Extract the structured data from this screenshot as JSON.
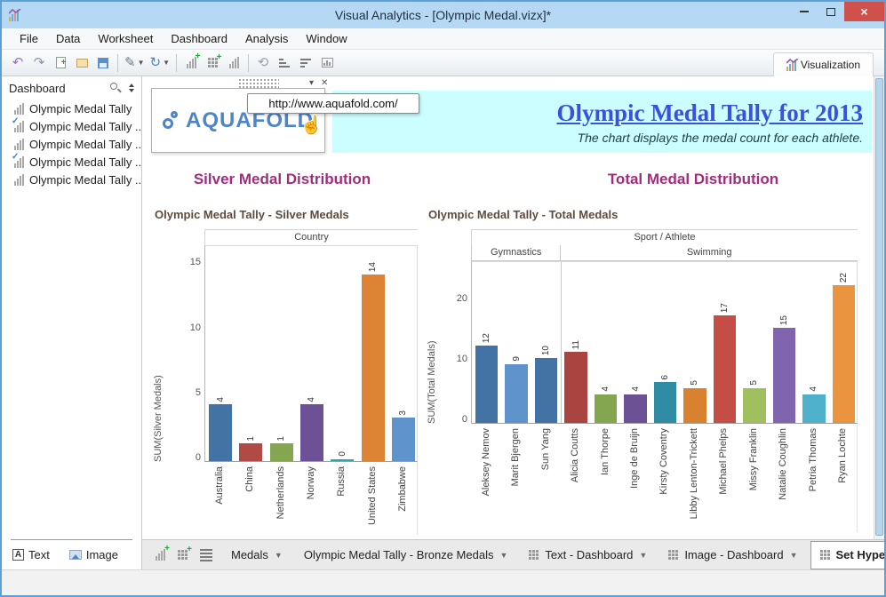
{
  "window": {
    "title": "Visual Analytics - [Olympic Medal.vizx]*",
    "controls": [
      "minimize",
      "maximize",
      "close"
    ]
  },
  "menu": {
    "items": [
      "File",
      "Data",
      "Worksheet",
      "Dashboard",
      "Analysis",
      "Window"
    ]
  },
  "toolbar": {
    "visualization_label": "Visualization",
    "icons": [
      {
        "name": "undo-icon",
        "kind": "glyph",
        "glyph": "↶",
        "color": "#9e72b8"
      },
      {
        "name": "redo-icon",
        "kind": "glyph",
        "glyph": "↷",
        "color": "#8a98a6"
      },
      {
        "name": "new-worksheet-icon",
        "kind": "doc"
      },
      {
        "name": "open-file-icon",
        "kind": "folder"
      },
      {
        "name": "save-icon",
        "kind": "floppy"
      },
      {
        "name": "separator",
        "kind": "sep"
      },
      {
        "name": "format-icon",
        "kind": "glyph",
        "glyph": "✎",
        "color": "#6a7a88",
        "dropdown": true
      },
      {
        "name": "refresh-icon",
        "kind": "glyph",
        "glyph": "↻",
        "color": "#4a86c8",
        "dropdown": true
      },
      {
        "name": "separator",
        "kind": "sep"
      },
      {
        "name": "add-worksheet-icon",
        "kind": "bars",
        "plus": true,
        "gray": true
      },
      {
        "name": "add-dashboard-icon",
        "kind": "grid",
        "plus": true
      },
      {
        "name": "duplicate-sheet-icon",
        "kind": "bars",
        "gray": true
      },
      {
        "name": "separator",
        "kind": "sep"
      },
      {
        "name": "lasso-select-icon",
        "kind": "glyph",
        "glyph": "⟲",
        "color": "#98a2aa"
      },
      {
        "name": "sort-ascending-icon",
        "kind": "hlines",
        "widths": [
          5,
          8,
          12
        ]
      },
      {
        "name": "sort-descending-icon",
        "kind": "hlines",
        "widths": [
          12,
          8,
          5
        ]
      },
      {
        "name": "chart-type-icon",
        "kind": "chartbox"
      }
    ]
  },
  "sidebar": {
    "header": "Dashboard",
    "items": [
      {
        "label": "Olympic Medal Tally",
        "checked": false
      },
      {
        "label": "Olympic Medal Tally ...",
        "checked": true
      },
      {
        "label": "Olympic Medal Tally ...",
        "checked": false
      },
      {
        "label": "Olympic Medal Tally ...",
        "checked": true
      },
      {
        "label": "Olympic Medal Tally ...",
        "checked": false
      }
    ],
    "text_button": "Text",
    "image_button": "Image"
  },
  "banner": {
    "logo_text": "AQUAFOLD",
    "tooltip": "http://www.aquafold.com/",
    "title": "Olympic Medal Tally for 2013",
    "subtitle": "The chart displays the medal count for each athlete.",
    "background": "#ccfeff",
    "title_color": "#3b50e0"
  },
  "sections": {
    "silver": "Silver Medal Distribution",
    "total": "Total Medal Distribution",
    "header_color": "#a12d7d"
  },
  "chart_data": [
    {
      "type": "bar",
      "title": "Olympic Medal Tally - Silver Medals",
      "field_label": "Country",
      "ylabel": "SUM(Silver Medals)",
      "categories": [
        "Australia",
        "China",
        "Netherlands",
        "Norway",
        "Russia",
        "United States",
        "Zimbabwe"
      ],
      "values": [
        4,
        1,
        1,
        4,
        0,
        14,
        3
      ],
      "colors": [
        "#4273a4",
        "#b04a45",
        "#84a650",
        "#6d5196",
        "#31a2b0",
        "#dd8434",
        "#5e93cc"
      ],
      "yticks": [
        0,
        5,
        10,
        15
      ],
      "ylim": [
        0,
        15.5
      ],
      "grid": false,
      "legend": false
    },
    {
      "type": "bar",
      "title": "Olympic Medal Tally - Total Medals",
      "field_label": "Sport / Athlete",
      "groups": [
        {
          "label": "Gymnastics",
          "span": 3
        },
        {
          "label": "Swimming",
          "span": 10
        }
      ],
      "ylabel": "SUM(Total Medals)",
      "categories": [
        "Aleksey Nemov",
        "Marit Bjergen",
        "Sun Yang",
        "Alicia Coutts",
        "Ian Thorpe",
        "Inge de Bruijn",
        "Kirsty Coventry",
        "Libby Lenton-Trickett",
        "Michael Phelps",
        "Missy Franklin",
        "Natalie Coughlin",
        "Petria Thomas",
        "Ryan Lochte"
      ],
      "values": [
        12,
        9,
        10,
        11,
        4,
        4,
        6,
        5,
        17,
        5,
        15,
        4,
        22
      ],
      "colors": [
        "#4273a4",
        "#5e93cc",
        "#4273a4",
        "#a94440",
        "#84a650",
        "#6d5196",
        "#2f8ba4",
        "#d8822f",
        "#c44d45",
        "#a0c060",
        "#8064ad",
        "#4fb0cc",
        "#eb9440"
      ],
      "yticks": [
        0,
        10,
        20
      ],
      "ylim": [
        0,
        25
      ],
      "grid": false,
      "legend": false
    }
  ],
  "tab_strip": {
    "icons": [
      {
        "name": "new-worksheet-tab-icon",
        "kind": "bars",
        "plus": true,
        "gray": true
      },
      {
        "name": "new-dashboard-tab-icon",
        "kind": "grid",
        "plus": true
      },
      {
        "name": "sheet-list-icon",
        "kind": "hlines",
        "widths": [
          14,
          14,
          14,
          14
        ]
      }
    ],
    "tabs": [
      {
        "label": "Medals",
        "grid_icon": false,
        "active": false
      },
      {
        "label": "Olympic Medal Tally - Bronze Medals",
        "grid_icon": false,
        "active": false
      },
      {
        "label": "Text - Dashboard",
        "grid_icon": true,
        "active": false
      },
      {
        "label": "Image - Dashboard",
        "grid_icon": true,
        "active": false
      },
      {
        "label": "Set Hyperlink",
        "grid_icon": true,
        "active": true
      }
    ],
    "nav_back": "◂",
    "nav_forward": "▸"
  }
}
